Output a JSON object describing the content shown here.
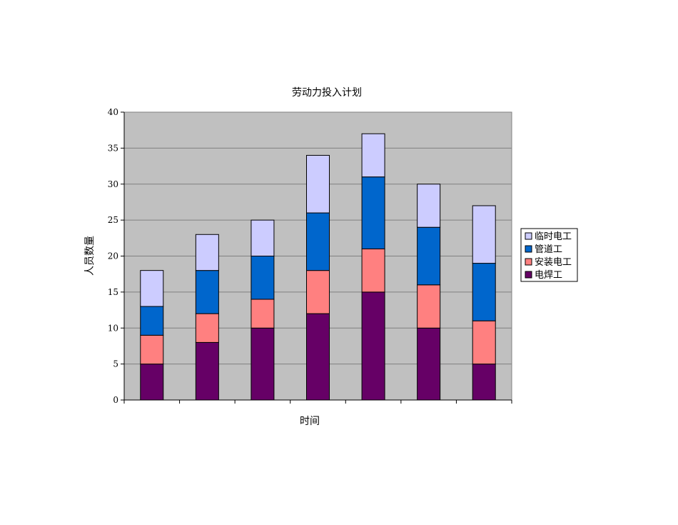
{
  "chart_data": {
    "type": "bar",
    "stacked": true,
    "title": "劳动力投入计划",
    "xlabel": "时间",
    "ylabel": "人员数量",
    "ylim": [
      0,
      40
    ],
    "yticks": [
      "0",
      "5",
      "10",
      "15",
      "20",
      "25",
      "30",
      "35",
      "40"
    ],
    "grid": true,
    "legend_position": "right",
    "categories": [
      "",
      "",
      "",
      "",
      "",
      "",
      ""
    ],
    "series": [
      {
        "name": "电焊工",
        "color": "#660066",
        "values": [
          5,
          8,
          10,
          12,
          15,
          10,
          5
        ]
      },
      {
        "name": "安装电工",
        "color": "#ff8080",
        "values": [
          4,
          4,
          4,
          6,
          6,
          6,
          6
        ]
      },
      {
        "name": "管道工",
        "color": "#0066cc",
        "values": [
          4,
          6,
          6,
          8,
          10,
          8,
          8
        ]
      },
      {
        "name": "临时电工",
        "color": "#ccccff",
        "values": [
          5,
          5,
          5,
          8,
          6,
          6,
          8
        ]
      }
    ],
    "legend_order": [
      "临时电工",
      "管道工",
      "安装电工",
      "电焊工"
    ],
    "plot_background": "#c0c0c0"
  }
}
